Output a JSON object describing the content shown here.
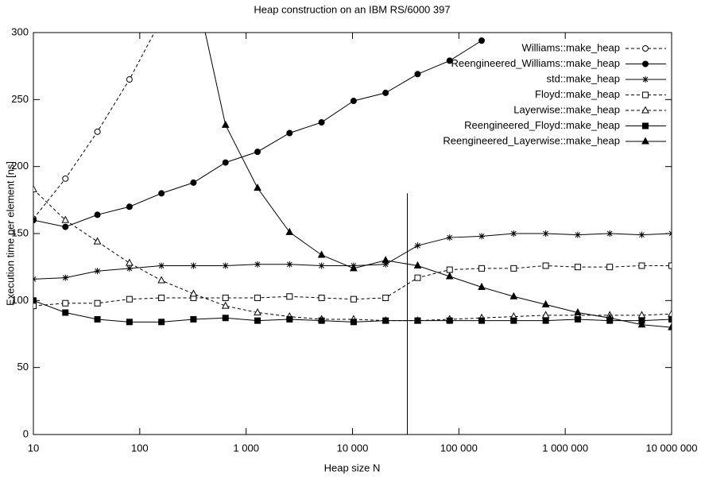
{
  "chart_data": {
    "type": "line",
    "title": "Heap construction on an IBM RS/6000 397",
    "x_label": "Heap size N",
    "y_label": "Execution time per element [ns]",
    "xscale": "log",
    "xlim": [
      10,
      10000000
    ],
    "xticks": [
      10,
      100,
      {
        "value": 1000,
        "label": "1 000"
      },
      {
        "value": 10000,
        "label": "10 000"
      },
      {
        "value": 100000,
        "label": "100 000"
      },
      {
        "value": 1000000,
        "label": "1 000 000"
      },
      {
        "value": 10000000,
        "label": "10 000 000"
      }
    ],
    "ylim": [
      0,
      300
    ],
    "yticks": [
      0,
      50,
      100,
      150,
      200,
      250,
      300
    ],
    "legend": "top-right",
    "x": [
      10,
      20,
      40,
      80,
      160,
      320,
      640,
      1280,
      2560,
      5120,
      10240,
      20480,
      40960,
      81920,
      163840,
      327680,
      655360,
      1310720,
      2621440,
      5242880,
      10000000
    ],
    "vertical_line": {
      "x": 32768,
      "ylim": [
        0,
        180
      ]
    },
    "series": [
      {
        "name": "Williams::make_heap",
        "color": "#000000",
        "marker": "circle-open",
        "dashed": true,
        "values": [
          161,
          191,
          226,
          265,
          310,
          null,
          null,
          null,
          null,
          null,
          null,
          null,
          null,
          null,
          null,
          null,
          null,
          null,
          null,
          null,
          null
        ]
      },
      {
        "name": "Reengineered_Williams::make_heap",
        "color": "#000000",
        "marker": "circle-filled",
        "dashed": false,
        "values": [
          160,
          155,
          164,
          170,
          180,
          188,
          203,
          211,
          225,
          233,
          249,
          255,
          269,
          279,
          294,
          null,
          null,
          null,
          null,
          null,
          null
        ]
      },
      {
        "name": "std::make_heap",
        "color": "#000000",
        "marker": "asterisk",
        "dashed": false,
        "values": [
          116,
          117,
          122,
          124,
          126,
          126,
          126,
          127,
          127,
          126,
          126,
          127,
          141,
          147,
          148,
          150,
          150,
          149,
          150,
          149,
          150
        ]
      },
      {
        "name": "Floyd::make_heap",
        "color": "#000000",
        "marker": "square-open",
        "dashed": true,
        "values": [
          96,
          98,
          98,
          101,
          102,
          102,
          102,
          102,
          103,
          102,
          101,
          102,
          117,
          123,
          124,
          124,
          126,
          125,
          125,
          126,
          126
        ]
      },
      {
        "name": "Layerwise::make_heap",
        "color": "#000000",
        "marker": "triangle-open",
        "dashed": true,
        "values": [
          183,
          160,
          144,
          128,
          115,
          105,
          96,
          91,
          88,
          86,
          86,
          85,
          85,
          86,
          87,
          88,
          89,
          89,
          89,
          89,
          90
        ]
      },
      {
        "name": "Reengineered_Floyd::make_heap",
        "color": "#000000",
        "marker": "square-filled",
        "dashed": false,
        "values": [
          100,
          91,
          86,
          84,
          84,
          86,
          87,
          85,
          86,
          85,
          84,
          85,
          85,
          85,
          85,
          85,
          85,
          86,
          85,
          85,
          86
        ]
      },
      {
        "name": "Reengineered_Layerwise::make_heap",
        "color": "#000000",
        "marker": "triangle-filled",
        "dashed": false,
        "values": [
          null,
          null,
          null,
          null,
          null,
          340,
          231,
          184,
          151,
          134,
          124,
          130,
          126,
          118,
          110,
          103,
          97,
          91,
          87,
          82,
          80
        ]
      }
    ]
  }
}
